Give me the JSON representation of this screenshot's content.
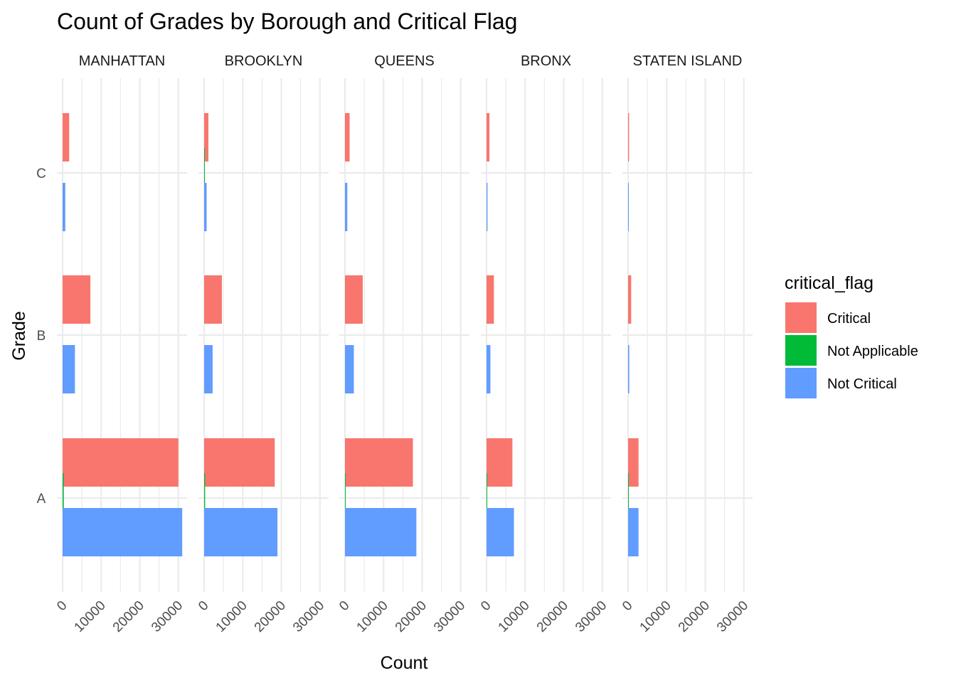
{
  "chart_data": {
    "type": "bar",
    "orientation": "horizontal",
    "title": "Count of Grades by Borough and Critical Flag",
    "xlabel": "Count",
    "ylabel": "Grade",
    "facets": [
      "MANHATTAN",
      "BROOKLYN",
      "QUEENS",
      "BRONX",
      "STATEN ISLAND"
    ],
    "categories": [
      "A",
      "B",
      "C"
    ],
    "x_ticks": [
      0,
      10000,
      20000,
      30000
    ],
    "x_tick_labels": [
      "0",
      "10000",
      "20000",
      "30000"
    ],
    "xlim": [
      0,
      32000
    ],
    "grid": true,
    "legend": {
      "title": "critical_flag",
      "position": "right",
      "entries": [
        "Critical",
        "Not Applicable",
        "Not Critical"
      ]
    },
    "colors": {
      "Critical": "#F8766D",
      "Not Applicable": "#00BA38",
      "Not Critical": "#619CFF"
    },
    "series": [
      {
        "name": "Critical",
        "values": {
          "MANHATTAN": [
            30000,
            7200,
            1700
          ],
          "BROOKLYN": [
            18300,
            4600,
            1100
          ],
          "QUEENS": [
            17600,
            4600,
            1200
          ],
          "BRONX": [
            6700,
            1900,
            750
          ],
          "STATEN ISLAND": [
            2700,
            800,
            250
          ]
        }
      },
      {
        "name": "Not Applicable",
        "values": {
          "MANHATTAN": [
            300,
            0,
            0
          ],
          "BROOKLYN": [
            250,
            0,
            120
          ],
          "QUEENS": [
            150,
            0,
            0
          ],
          "BRONX": [
            100,
            0,
            0
          ],
          "STATEN ISLAND": [
            30,
            0,
            0
          ]
        }
      },
      {
        "name": "Not Critical",
        "values": {
          "MANHATTAN": [
            31000,
            3200,
            700
          ],
          "BROOKLYN": [
            19000,
            2200,
            650
          ],
          "QUEENS": [
            18500,
            2300,
            600
          ],
          "BRONX": [
            7100,
            1000,
            250
          ],
          "STATEN ISLAND": [
            2700,
            300,
            100
          ]
        }
      }
    ]
  }
}
